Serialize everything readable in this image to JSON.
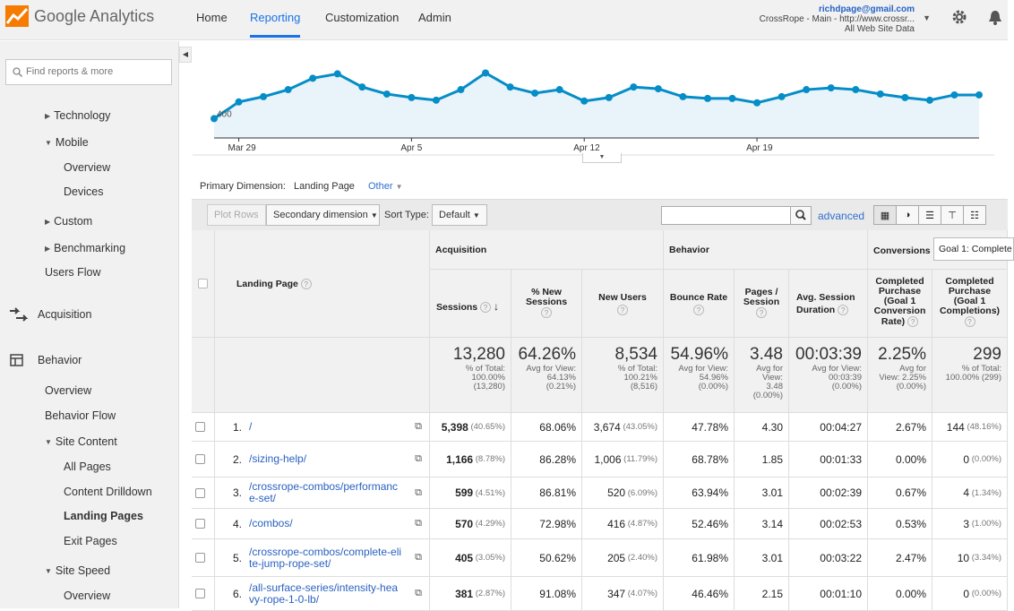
{
  "app": {
    "name": "Google Analytics"
  },
  "nav": {
    "items": [
      "Home",
      "Reporting",
      "Customization",
      "Admin"
    ],
    "active": "Reporting"
  },
  "account": {
    "email": "richdpage@gmail.com",
    "property": "CrossRope - Main - http://www.crossr...",
    "view": "All Web Site Data"
  },
  "sidebar": {
    "search_placeholder": "Find reports & more",
    "items": [
      "Technology",
      "Mobile",
      "Overview",
      "Devices",
      "Custom",
      "Benchmarking",
      "Users Flow",
      "Acquisition",
      "Behavior",
      "Overview",
      "Behavior Flow",
      "Site Content",
      "All Pages",
      "Content Drilldown",
      "Landing Pages",
      "Exit Pages",
      "Site Speed",
      "Overview"
    ]
  },
  "chart_data": {
    "type": "area",
    "x_tick_labels": [
      "Mar 29",
      "Apr 5",
      "Apr 12",
      "Apr 19"
    ],
    "y_tick_labels": [
      "400"
    ],
    "ylim": [
      380,
      480
    ],
    "values": [
      400,
      419,
      425,
      433,
      446,
      451,
      436,
      428,
      424,
      421,
      433,
      452,
      436,
      429,
      433,
      420,
      424,
      436,
      434,
      425,
      423,
      423,
      418,
      425,
      433,
      435,
      433,
      428,
      424,
      421,
      427,
      427
    ]
  },
  "primary_dimension": {
    "label": "Primary Dimension:",
    "value": "Landing Page",
    "other": "Other"
  },
  "toolbar": {
    "plot_rows": "Plot Rows",
    "secondary": "Secondary dimension",
    "sort_label": "Sort Type:",
    "sort_value": "Default",
    "advanced": "advanced"
  },
  "table": {
    "dimension_header": "Landing Page",
    "groups": {
      "acquisition": "Acquisition",
      "behavior": "Behavior",
      "conversions": "Conversions",
      "goal_select": "Goal 1: Complete"
    },
    "columns": [
      "Sessions",
      "% New Sessions",
      "New Users",
      "Bounce Rate",
      "Pages / Session",
      "Avg. Session Duration",
      "Completed Purchase (Goal 1 Conversion Rate)",
      "Completed Purchase (Goal 1 Completions)"
    ],
    "totals": [
      {
        "value": "13,280",
        "l1": "% of Total:",
        "l2": "100.00%",
        "l3": "(13,280)"
      },
      {
        "value": "64.26%",
        "l1": "Avg for View:",
        "l2": "64.13%",
        "l3": "(0.21%)"
      },
      {
        "value": "8,534",
        "l1": "% of Total:",
        "l2": "100.21%",
        "l3": "(8,516)"
      },
      {
        "value": "54.96%",
        "l1": "Avg for View:",
        "l2": "54.96%",
        "l3": "(0.00%)"
      },
      {
        "value": "3.48",
        "l1": "Avg for",
        "l2": "View:",
        "l3": "3.48",
        "l4": "(0.00%)"
      },
      {
        "value": "00:03:39",
        "l1": "Avg for View:",
        "l2": "00:03:39",
        "l3": "(0.00%)"
      },
      {
        "value": "2.25%",
        "l1": "Avg for",
        "l2": "View: 2.25%",
        "l3": "(0.00%)"
      },
      {
        "value": "299",
        "l1": "% of Total:",
        "l2": "100.00% (299)"
      }
    ],
    "rows": [
      {
        "n": "1.",
        "page": "/",
        "sessions": "5,398",
        "sessions_pct": "(40.65%)",
        "new_sess": "68.06%",
        "new_users": "3,674",
        "new_users_pct": "(43.05%)",
        "bounce": "47.78%",
        "pps": "4.30",
        "dur": "00:04:27",
        "conv": "2.67%",
        "comp": "144",
        "comp_pct": "(48.16%)"
      },
      {
        "n": "2.",
        "page": "/sizing-help/",
        "sessions": "1,166",
        "sessions_pct": "(8.78%)",
        "new_sess": "86.28%",
        "new_users": "1,006",
        "new_users_pct": "(11.79%)",
        "bounce": "68.78%",
        "pps": "1.85",
        "dur": "00:01:33",
        "conv": "0.00%",
        "comp": "0",
        "comp_pct": "(0.00%)"
      },
      {
        "n": "3.",
        "page": "/crossrope-combos/performance-set/",
        "sessions": "599",
        "sessions_pct": "(4.51%)",
        "new_sess": "86.81%",
        "new_users": "520",
        "new_users_pct": "(6.09%)",
        "bounce": "63.94%",
        "pps": "3.01",
        "dur": "00:02:39",
        "conv": "0.67%",
        "comp": "4",
        "comp_pct": "(1.34%)"
      },
      {
        "n": "4.",
        "page": "/combos/",
        "sessions": "570",
        "sessions_pct": "(4.29%)",
        "new_sess": "72.98%",
        "new_users": "416",
        "new_users_pct": "(4.87%)",
        "bounce": "52.46%",
        "pps": "3.14",
        "dur": "00:02:53",
        "conv": "0.53%",
        "comp": "3",
        "comp_pct": "(1.00%)"
      },
      {
        "n": "5.",
        "page": "/crossrope-combos/complete-elite-jump-rope-set/",
        "sessions": "405",
        "sessions_pct": "(3.05%)",
        "new_sess": "50.62%",
        "new_users": "205",
        "new_users_pct": "(2.40%)",
        "bounce": "61.98%",
        "pps": "3.01",
        "dur": "00:03:22",
        "conv": "2.47%",
        "comp": "10",
        "comp_pct": "(3.34%)"
      },
      {
        "n": "6.",
        "page": "/all-surface-series/intensity-heavy-rope-1-0-lb/",
        "sessions": "381",
        "sessions_pct": "(2.87%)",
        "new_sess": "91.08%",
        "new_users": "347",
        "new_users_pct": "(4.07%)",
        "bounce": "46.46%",
        "pps": "2.15",
        "dur": "00:01:10",
        "conv": "0.00%",
        "comp": "0",
        "comp_pct": "(0.00%)"
      }
    ]
  }
}
